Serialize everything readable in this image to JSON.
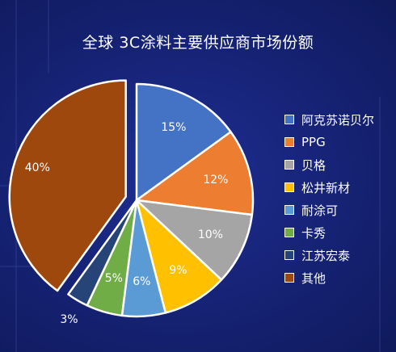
{
  "chart_data": {
    "type": "pie",
    "title": "全球 3C涂料主要供应商市场份额",
    "categories": [
      "阿克苏诺贝尔",
      "PPG",
      "贝格",
      "松井新材",
      "耐涂可",
      "卡秀",
      "江苏宏泰",
      "其他"
    ],
    "values": [
      15,
      12,
      10,
      9,
      6,
      5,
      3,
      40
    ],
    "labels": [
      "15%",
      "12%",
      "10%",
      "9%",
      "6%",
      "5%",
      "3%",
      "40%"
    ],
    "colors": [
      "#4472C4",
      "#ED7D31",
      "#A5A5A5",
      "#FFC000",
      "#5B9BD5",
      "#70AD47",
      "#264478",
      "#9E480E"
    ],
    "exploded": [
      "其他"
    ],
    "legend_position": "right"
  }
}
